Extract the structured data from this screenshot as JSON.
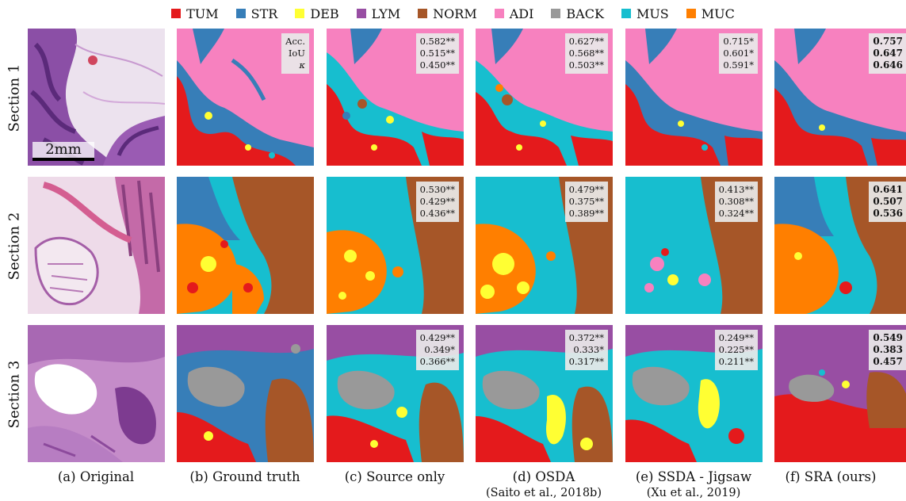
{
  "legend": [
    {
      "label": "TUM",
      "color": "#e41a1c"
    },
    {
      "label": "STR",
      "color": "#377eb8"
    },
    {
      "label": "DEB",
      "color": "#ffff33"
    },
    {
      "label": "LYM",
      "color": "#984ea3"
    },
    {
      "label": "NORM",
      "color": "#a65628"
    },
    {
      "label": "ADI",
      "color": "#f781bf"
    },
    {
      "label": "BACK",
      "color": "#999999"
    },
    {
      "label": "MUS",
      "color": "#17becf"
    },
    {
      "label": "MUC",
      "color": "#ff7f00"
    }
  ],
  "rows": [
    "Section 1",
    "Section 2",
    "Section 3"
  ],
  "scale_bar": "2mm",
  "metric_names": {
    "acc": "Acc.",
    "iou": "IoU",
    "kappa": "κ"
  },
  "columns": [
    {
      "label": "(a) Original",
      "sub": ""
    },
    {
      "label": "(b) Ground truth",
      "sub": ""
    },
    {
      "label": "(c) Source only",
      "sub": ""
    },
    {
      "label": "(d) OSDA",
      "sub": "(Saito et al., 2018b)"
    },
    {
      "label": "(e) SSDA - Jigsaw",
      "sub": "(Xu et al., 2019)"
    },
    {
      "label": "(f) SRA (ours)",
      "sub": ""
    }
  ],
  "metrics": {
    "s1": {
      "c": [
        "0.582**",
        "0.515**",
        "0.450**"
      ],
      "d": [
        "0.627**",
        "0.568**",
        "0.503**"
      ],
      "e": [
        "0.715*",
        "0.601*",
        "0.591*"
      ],
      "f": [
        "0.757",
        "0.647",
        "0.646"
      ]
    },
    "s2": {
      "c": [
        "0.530**",
        "0.429**",
        "0.436**"
      ],
      "d": [
        "0.479**",
        "0.375**",
        "0.389**"
      ],
      "e": [
        "0.413**",
        "0.308**",
        "0.324**"
      ],
      "f": [
        "0.641",
        "0.507",
        "0.536"
      ]
    },
    "s3": {
      "c": [
        "0.429**",
        "0.349*",
        "0.366**"
      ],
      "d": [
        "0.372**",
        "0.333*",
        "0.317**"
      ],
      "e": [
        "0.249**",
        "0.225**",
        "0.211**"
      ],
      "f": [
        "0.549",
        "0.383",
        "0.457"
      ]
    }
  }
}
